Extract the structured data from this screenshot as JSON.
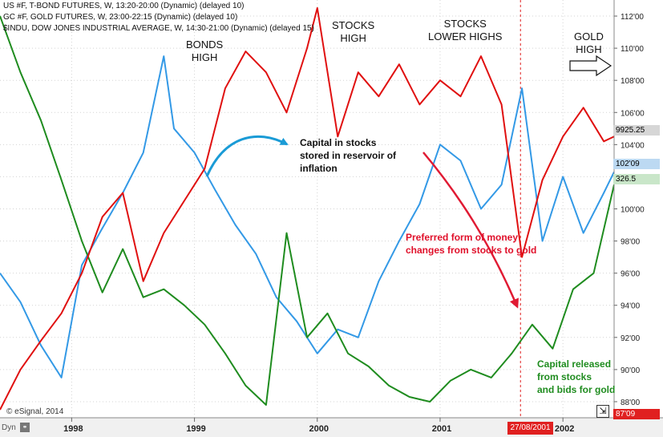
{
  "legend": {
    "line1": "US #F, T-BOND FUTURES, W, 13:20-20:00 (Dynamic) (delayed 10)",
    "line2": "GC #F, GOLD FUTURES, W, 23:00-22:15 (Dynamic) (delayed 10)",
    "line3": "$INDU, DOW JONES INDUSTRIAL AVERAGE, W, 14:30-21:00 (Dynamic) (delayed 15)"
  },
  "annotations": {
    "bonds_high": "BONDS\nHIGH",
    "stocks_high": "STOCKS\nHIGH",
    "stocks_lower_highs": "STOCKS\nLOWER HIGHS",
    "gold_high": "GOLD\nHIGH",
    "capital_in_stocks": "Capital in stocks\nstored in reservoir of\ninflation",
    "preferred_form": "Preferred form of money\nchanges from stocks to gold",
    "capital_released": "Capital released\nfrom stocks\nand bids for gold"
  },
  "price_tags": {
    "dow": "9925.25",
    "bond": "102'09",
    "gold": "326.5",
    "bottom": "87'09"
  },
  "footer": {
    "copyright": "© eSignal, 2014",
    "dyn": "Dyn",
    "cursor_date": "27/08/2001"
  },
  "colors": {
    "bond": "#3399e6",
    "gold": "#1f8c1f",
    "dow": "#e01010",
    "arrow_blue": "#1a9bd6",
    "arrow_red": "#e01a33",
    "text_red": "#e0102a",
    "text_green": "#1f8c1f",
    "grid": "#d3d3d3"
  },
  "chart_data": {
    "type": "line",
    "x_axis": {
      "ticks": [
        "1998",
        "1999",
        "2000",
        "2001",
        "2002"
      ],
      "range": [
        "1997-06",
        "2002-06"
      ]
    },
    "y_axis": {
      "ticks": [
        "88'00",
        "90'00",
        "92'00",
        "94'00",
        "96'00",
        "98'00",
        "100'00",
        "102'00",
        "104'00",
        "106'00",
        "108'00",
        "110'00",
        "112'00"
      ],
      "range": [
        87,
        113
      ],
      "side": "right",
      "grid": "dotted horizontal"
    },
    "cursor_line": "2001-08-27",
    "series": [
      {
        "name": "US #F, T-BOND FUTURES",
        "color": "#3399e6",
        "x": [
          "1997-06",
          "1997-08",
          "1997-10",
          "1997-12",
          "1998-02",
          "1998-04",
          "1998-06",
          "1998-08",
          "1998-10",
          "1998-11",
          "1999-01",
          "1999-03",
          "1999-05",
          "1999-07",
          "1999-09",
          "1999-11",
          "2000-01",
          "2000-03",
          "2000-05",
          "2000-07",
          "2000-09",
          "2000-11",
          "2001-01",
          "2001-03",
          "2001-05",
          "2001-07",
          "2001-09",
          "2001-11",
          "2002-01",
          "2002-03",
          "2002-05",
          "2002-06"
        ],
        "y": [
          96.0,
          94.2,
          91.5,
          89.5,
          96.5,
          98.8,
          101.0,
          103.5,
          109.5,
          105.0,
          103.5,
          101.2,
          99.0,
          97.2,
          94.5,
          93.0,
          91.0,
          92.5,
          92.0,
          95.5,
          98.0,
          100.3,
          104.0,
          103.0,
          100.0,
          101.5,
          107.5,
          98.0,
          102.0,
          98.5,
          101.0,
          102.3
        ]
      },
      {
        "name": "GC #F, GOLD FUTURES",
        "color": "#1f8c1f",
        "x": [
          "1997-06",
          "1997-08",
          "1997-10",
          "1997-12",
          "1998-02",
          "1998-04",
          "1998-06",
          "1998-08",
          "1998-10",
          "1998-12",
          "1999-02",
          "1999-04",
          "1999-06",
          "1999-08",
          "1999-10",
          "1999-12",
          "2000-02",
          "2000-04",
          "2000-06",
          "2000-08",
          "2000-10",
          "2000-12",
          "2001-02",
          "2001-04",
          "2001-06",
          "2001-08",
          "2001-10",
          "2001-12",
          "2002-02",
          "2002-04",
          "2002-06"
        ],
        "y": [
          112.0,
          108.5,
          105.5,
          101.8,
          98.0,
          94.8,
          97.5,
          94.5,
          95.0,
          94.0,
          92.8,
          91.0,
          89.0,
          87.8,
          98.5,
          92.0,
          93.5,
          91.0,
          90.2,
          89.0,
          88.3,
          88.0,
          89.3,
          90.0,
          89.5,
          91.0,
          92.8,
          91.3,
          95.0,
          96.0,
          101.5
        ]
      },
      {
        "name": "$INDU, DOW JONES INDUSTRIAL AVERAGE",
        "color": "#e01010",
        "x": [
          "1997-06",
          "1997-08",
          "1997-10",
          "1997-12",
          "1998-02",
          "1998-04",
          "1998-06",
          "1998-08",
          "1998-10",
          "1998-12",
          "1999-02",
          "1999-04",
          "1999-06",
          "1999-08",
          "1999-10",
          "1999-12",
          "2000-01",
          "2000-03",
          "2000-05",
          "2000-07",
          "2000-09",
          "2000-11",
          "2001-01",
          "2001-03",
          "2001-05",
          "2001-07",
          "2001-09",
          "2001-11",
          "2002-01",
          "2002-03",
          "2002-05",
          "2002-06"
        ],
        "y": [
          87.5,
          90.0,
          91.8,
          93.5,
          96.0,
          99.5,
          101.0,
          95.5,
          98.5,
          100.5,
          102.5,
          107.5,
          109.8,
          108.5,
          106.0,
          110.0,
          112.5,
          104.5,
          108.5,
          107.0,
          109.0,
          106.5,
          108.0,
          107.0,
          109.5,
          106.5,
          97.0,
          101.8,
          104.5,
          106.3,
          104.2,
          104.5
        ]
      }
    ]
  }
}
